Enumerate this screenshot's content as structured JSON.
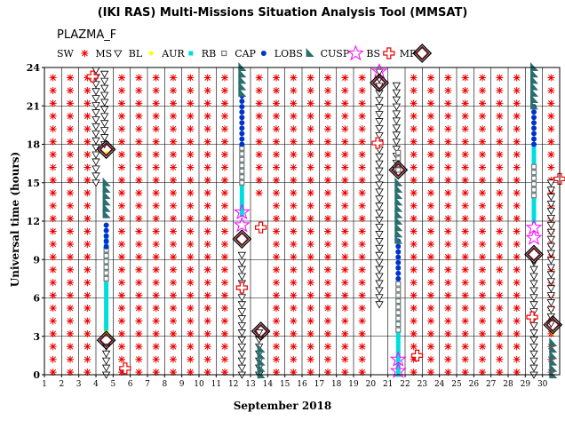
{
  "chart_data": {
    "type": "scatter",
    "title": "(IKI RAS) Multi-Missions Situation Analysis Tool (MMSAT)",
    "mission": "PLAZMA_F",
    "xlabel": "September 2018",
    "ylabel": "Universal time (hours)",
    "xlim": [
      1,
      31
    ],
    "ylim": [
      0,
      24
    ],
    "x_ticks": [
      "1",
      "2",
      "3",
      "4",
      "5",
      "6",
      "7",
      "8",
      "9",
      "10",
      "11",
      "12",
      "13",
      "14",
      "15",
      "16",
      "17",
      "18",
      "19",
      "20",
      "21",
      "22",
      "23",
      "24",
      "25",
      "26",
      "27",
      "28",
      "29",
      "30"
    ],
    "y_ticks": [
      "0",
      "3",
      "6",
      "9",
      "12",
      "15",
      "18",
      "21",
      "24"
    ],
    "grid": true,
    "legend": [
      {
        "label": "SW",
        "symbol": "none",
        "color": "#000000"
      },
      {
        "label": "",
        "symbol": "asterisk",
        "color": "#ee0000"
      },
      {
        "label": "MS",
        "symbol": "triangle-down",
        "color": "#000000"
      },
      {
        "label": "BL",
        "symbol": "dot",
        "color": "#ffff00"
      },
      {
        "label": "AUR",
        "symbol": "square-filled",
        "color": "#00dddd"
      },
      {
        "label": "RB",
        "symbol": "square-open",
        "color": "#777777"
      },
      {
        "label": "CAP",
        "symbol": "circle-filled",
        "color": "#0033cc"
      },
      {
        "label": "LOBS",
        "symbol": "flag",
        "color": "#2a6e6e"
      },
      {
        "label": "CUSP",
        "symbol": "star",
        "color": "#ff00ff"
      },
      {
        "label": "BS",
        "symbol": "cross",
        "color": "#ee0000"
      },
      {
        "label": "MP",
        "symbol": "diamond",
        "color": "#5a1018"
      }
    ],
    "sw_days": [
      1,
      2,
      3,
      4,
      5,
      6,
      7,
      8,
      9,
      10,
      11,
      12,
      13,
      14,
      15,
      16,
      17,
      18,
      19,
      20,
      21,
      22,
      23,
      24,
      25,
      26,
      27,
      28,
      29,
      30
    ],
    "sw_gaps": [
      {
        "day": 4.6,
        "from": 0,
        "to": 24
      },
      {
        "day": 12.6,
        "from": 0,
        "to": 24
      },
      {
        "day": 13.6,
        "from": 0,
        "to": 14
      },
      {
        "day": 20.6,
        "from": 0,
        "to": 24
      },
      {
        "day": 21.6,
        "from": 0,
        "to": 24
      },
      {
        "day": 29.5,
        "from": 0,
        "to": 24
      }
    ],
    "ms_segments": [
      {
        "x": 4.0,
        "from": 15.0,
        "to": 24.0
      },
      {
        "x": 4.5,
        "from": 18.0,
        "to": 24.0
      },
      {
        "x": 4.6,
        "from": 0.0,
        "to": 2.7
      },
      {
        "x": 13.5,
        "from": 0.0,
        "to": 3.3
      },
      {
        "x": 12.5,
        "from": 0.0,
        "to": 9.6
      },
      {
        "x": 20.5,
        "from": 5.5,
        "to": 24.0
      },
      {
        "x": 21.5,
        "from": 16.0,
        "to": 23.0
      },
      {
        "x": 29.5,
        "from": 0.0,
        "to": 9.2
      },
      {
        "x": 30.5,
        "from": 4.0,
        "to": 15.0
      }
    ],
    "bl_points": [
      {
        "x": 4.6,
        "y": 3.3
      },
      {
        "x": 4.6,
        "y": 17.3
      },
      {
        "x": 30.6,
        "y": 3.3
      }
    ],
    "aur_segments": [
      {
        "x": 4.6,
        "from": 3.5,
        "to": 11.0
      },
      {
        "x": 12.5,
        "from": 12.5,
        "to": 18.0
      },
      {
        "x": 21.6,
        "from": 0.0,
        "to": 6.0
      },
      {
        "x": 29.5,
        "from": 12.0,
        "to": 18.0
      }
    ],
    "rb_segments": [
      {
        "x": 4.6,
        "from": 7.5,
        "to": 10.0
      },
      {
        "x": 12.5,
        "from": 15.0,
        "to": 18.0
      },
      {
        "x": 21.6,
        "from": 3.5,
        "to": 7.5
      },
      {
        "x": 21.6,
        "from": 16.0,
        "to": 17.5
      },
      {
        "x": 29.5,
        "from": 14.0,
        "to": 16.5
      }
    ],
    "cap_segments": [
      {
        "x": 4.6,
        "from": 10.0,
        "to": 12.0
      },
      {
        "x": 12.5,
        "from": 18.0,
        "to": 22.0
      },
      {
        "x": 21.6,
        "from": 7.5,
        "to": 10.5
      },
      {
        "x": 29.5,
        "from": 18.0,
        "to": 21.0
      }
    ],
    "lobs_segments": [
      {
        "x": 4.6,
        "from": 12.5,
        "to": 15.0
      },
      {
        "x": 12.5,
        "from": 22.0,
        "to": 24.0
      },
      {
        "x": 13.6,
        "from": 0.0,
        "to": 2.0
      },
      {
        "x": 21.6,
        "from": 10.5,
        "to": 15.0
      },
      {
        "x": 29.5,
        "from": 21.0,
        "to": 24.0
      },
      {
        "x": 30.6,
        "from": 0.0,
        "to": 2.5
      }
    ],
    "cusp_points": [
      {
        "x": 12.5,
        "y": 11.7
      },
      {
        "x": 12.5,
        "y": 12.7
      },
      {
        "x": 20.5,
        "y": 23.7
      },
      {
        "x": 21.6,
        "y": 0.3
      },
      {
        "x": 21.6,
        "y": 1.2
      },
      {
        "x": 29.5,
        "y": 10.7
      },
      {
        "x": 29.5,
        "y": 11.5
      }
    ],
    "bs_points": [
      {
        "x": 3.8,
        "y": 23.3
      },
      {
        "x": 5.7,
        "y": 0.5
      },
      {
        "x": 12.5,
        "y": 6.8
      },
      {
        "x": 13.6,
        "y": 11.5
      },
      {
        "x": 20.4,
        "y": 18.1
      },
      {
        "x": 22.7,
        "y": 1.5
      },
      {
        "x": 29.4,
        "y": 4.5
      },
      {
        "x": 31.0,
        "y": 15.3
      }
    ],
    "mp_points": [
      {
        "x": 4.6,
        "y": 17.6
      },
      {
        "x": 4.6,
        "y": 2.7
      },
      {
        "x": 12.5,
        "y": 10.6
      },
      {
        "x": 13.6,
        "y": 3.4
      },
      {
        "x": 20.5,
        "y": 22.8
      },
      {
        "x": 21.6,
        "y": 16.0
      },
      {
        "x": 29.5,
        "y": 9.4
      },
      {
        "x": 30.6,
        "y": 3.9
      }
    ]
  }
}
